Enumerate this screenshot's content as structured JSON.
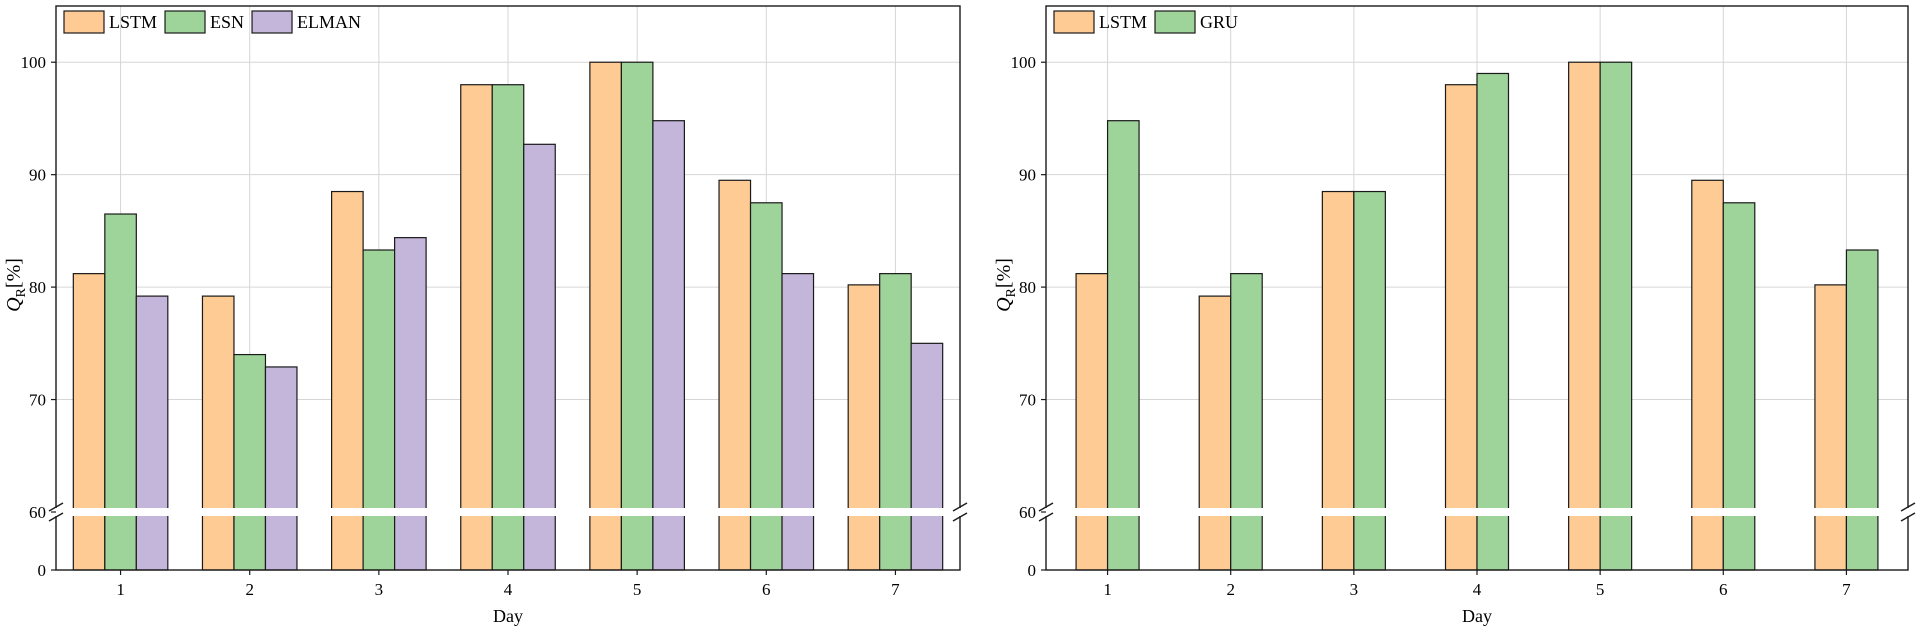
{
  "chart_data": [
    {
      "type": "bar",
      "xlabel": "Day",
      "ylabel": "Q",
      "ylabel_sub": "R",
      "ylabel_unit": "[%]",
      "categories": [
        "1",
        "2",
        "3",
        "4",
        "5",
        "6",
        "7"
      ],
      "upper_ylim": [
        60,
        105
      ],
      "upper_yticks": [
        "60",
        "70",
        "80",
        "90",
        "100"
      ],
      "lower_ylim": [
        0,
        5
      ],
      "lower_yticks": [
        "0"
      ],
      "axis_break": "between 0 and 60",
      "grid": true,
      "legend": "top-left",
      "series": [
        {
          "name": "LSTM",
          "color": "#fdcb93",
          "values": [
            81.2,
            79.2,
            88.5,
            98.0,
            100.0,
            89.5,
            80.2
          ]
        },
        {
          "name": "ESN",
          "color": "#9ed39a",
          "values": [
            86.5,
            74.0,
            83.3,
            98.0,
            100.0,
            87.5,
            81.2
          ]
        },
        {
          "name": "ELMAN",
          "color": "#c4b5da",
          "values": [
            79.2,
            72.9,
            84.4,
            92.7,
            94.8,
            81.2,
            75.0
          ]
        }
      ]
    },
    {
      "type": "bar",
      "xlabel": "Day",
      "ylabel": "Q",
      "ylabel_sub": "R",
      "ylabel_unit": "[%]",
      "categories": [
        "1",
        "2",
        "3",
        "4",
        "5",
        "6",
        "7"
      ],
      "upper_ylim": [
        60,
        105
      ],
      "upper_yticks": [
        "60",
        "70",
        "80",
        "90",
        "100"
      ],
      "lower_ylim": [
        0,
        5
      ],
      "lower_yticks": [
        "0"
      ],
      "axis_break": "between 0 and 60",
      "grid": true,
      "legend": "top-left",
      "series": [
        {
          "name": "LSTM",
          "color": "#fdcb93",
          "values": [
            81.2,
            79.2,
            88.5,
            98.0,
            100.0,
            89.5,
            80.2
          ]
        },
        {
          "name": "GRU",
          "color": "#9ed39a",
          "values": [
            94.8,
            81.2,
            88.5,
            99.0,
            100.0,
            87.5,
            83.3
          ]
        }
      ]
    }
  ]
}
